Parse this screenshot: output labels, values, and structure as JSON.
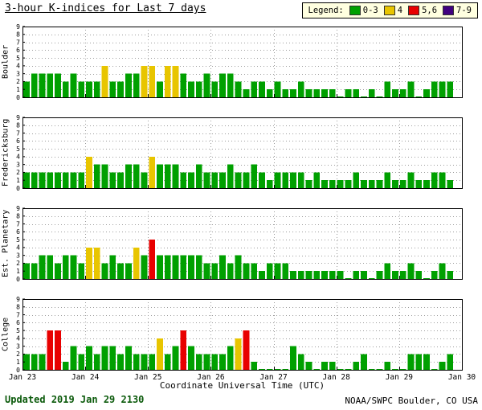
{
  "title": "3-hour K-indices for Last 7 days",
  "legend": {
    "label": "Legend:",
    "items": [
      {
        "label": "0-3",
        "color": "#00a000"
      },
      {
        "label": "4",
        "color": "#e8c500"
      },
      {
        "label": "5,6",
        "color": "#e80000"
      },
      {
        "label": "7-9",
        "color": "#400080"
      }
    ]
  },
  "x_axis": {
    "title": "Coordinate Universal Time (UTC)",
    "tick_labels": [
      "Jan 23",
      "Jan 24",
      "Jan 25",
      "Jan 26",
      "Jan 27",
      "Jan 28",
      "Jan 29",
      "Jan 30"
    ]
  },
  "y_axis": {
    "min": 0,
    "max": 9,
    "ticks": [
      0,
      1,
      2,
      3,
      4,
      5,
      6,
      7,
      8,
      9
    ]
  },
  "footer": {
    "updated_label": "Updated",
    "updated_value": "2019 Jan 29 2130",
    "credit": "NOAA/SWPC Boulder, CO USA"
  },
  "chart_data": {
    "type": "bar",
    "interval_hours": 3,
    "slots_per_day": 8,
    "ylim": [
      0,
      9
    ],
    "grid": "dotted",
    "days": [
      "Jan 23",
      "Jan 24",
      "Jan 25",
      "Jan 26",
      "Jan 27",
      "Jan 28",
      "Jan 29"
    ],
    "color_rules": [
      {
        "range": "0-3",
        "color": "#00a000"
      },
      {
        "range": "4",
        "color": "#e8c500"
      },
      {
        "range": "5-6",
        "color": "#e80000"
      },
      {
        "range": "7-9",
        "color": "#400080"
      }
    ],
    "panels": [
      {
        "station": "Boulder",
        "k_values": [
          2,
          3,
          3,
          3,
          3,
          2,
          3,
          2,
          2,
          2,
          4,
          2,
          2,
          3,
          3,
          4,
          4,
          2,
          4,
          4,
          3,
          2,
          2,
          3,
          2,
          3,
          3,
          2,
          1,
          2,
          2,
          1,
          2,
          1,
          1,
          2,
          1,
          1,
          1,
          1,
          0,
          1,
          1,
          0,
          1,
          0,
          2,
          1,
          1,
          2,
          0,
          1,
          2,
          2,
          2,
          null
        ]
      },
      {
        "station": "Fredericksburg",
        "k_values": [
          2,
          2,
          2,
          2,
          2,
          2,
          2,
          2,
          4,
          3,
          3,
          2,
          2,
          3,
          3,
          2,
          4,
          3,
          3,
          3,
          2,
          2,
          3,
          2,
          2,
          2,
          3,
          2,
          2,
          3,
          2,
          1,
          2,
          2,
          2,
          2,
          1,
          2,
          1,
          1,
          1,
          1,
          2,
          1,
          1,
          1,
          2,
          1,
          1,
          2,
          1,
          1,
          2,
          2,
          1,
          null
        ]
      },
      {
        "station": "Est. Planetary",
        "k_values": [
          2,
          2,
          3,
          3,
          2,
          3,
          3,
          2,
          4,
          4,
          2,
          3,
          2,
          2,
          4,
          3,
          5,
          3,
          3,
          3,
          3,
          3,
          3,
          2,
          2,
          3,
          2,
          3,
          2,
          2,
          1,
          2,
          2,
          2,
          1,
          1,
          1,
          1,
          1,
          1,
          1,
          0,
          1,
          1,
          0,
          1,
          2,
          1,
          1,
          2,
          1,
          0,
          1,
          2,
          1,
          null
        ]
      },
      {
        "station": "College",
        "k_values": [
          2,
          2,
          2,
          5,
          5,
          1,
          3,
          2,
          3,
          2,
          3,
          3,
          2,
          3,
          2,
          2,
          2,
          4,
          2,
          3,
          5,
          3,
          2,
          2,
          2,
          2,
          3,
          4,
          5,
          1,
          0,
          0,
          0,
          0,
          3,
          2,
          1,
          0,
          1,
          1,
          0,
          0,
          1,
          2,
          0,
          0,
          1,
          0,
          0,
          2,
          2,
          2,
          0,
          1,
          2,
          null
        ]
      }
    ]
  }
}
